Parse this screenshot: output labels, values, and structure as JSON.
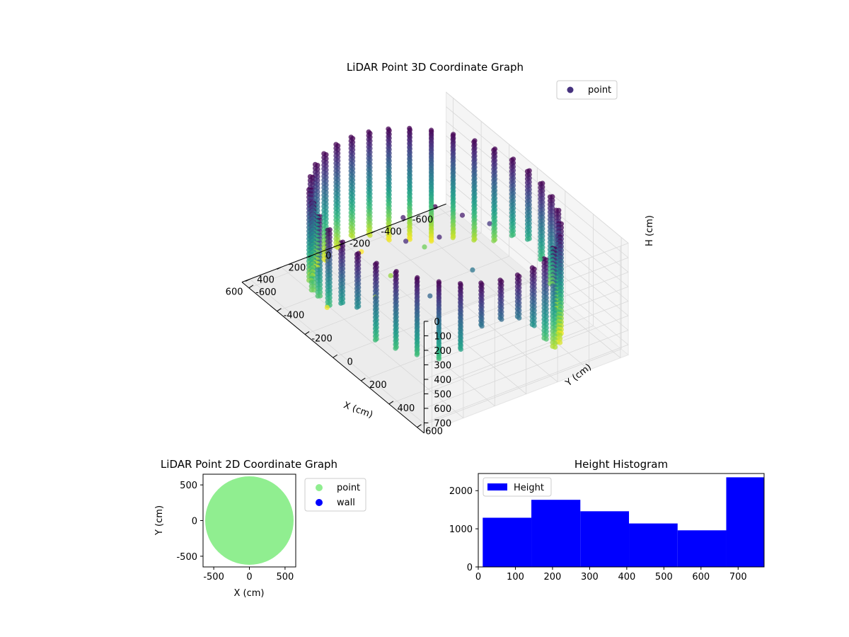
{
  "chart_data": [
    {
      "type": "scatter",
      "projection": "3d",
      "title": "LiDAR Point 3D Coordinate Graph",
      "xlabel": "X (cm)",
      "ylabel": "Y (cm)",
      "zlabel": "H (cm)",
      "xticks": [
        -600,
        -400,
        -200,
        0,
        200,
        400,
        600
      ],
      "yticks": [
        -600,
        -400,
        -200,
        0,
        200,
        400,
        600
      ],
      "zticks": [
        0,
        100,
        200,
        300,
        400,
        500,
        600,
        700
      ],
      "xlim": [
        -650,
        650
      ],
      "ylim": [
        -650,
        650
      ],
      "zlim": [
        770,
        0
      ],
      "z_axis_inverted": true,
      "colormap": "viridis",
      "legend": {
        "position": "upper-right",
        "entries": [
          {
            "label": "point",
            "color": "#46327e"
          }
        ]
      },
      "series": [
        {
          "name": "point",
          "shape": "cylindrical wall of scan columns, radius ≈ 600 cm, heights 0–770 cm",
          "color_by": "height",
          "column_angles_deg": [
            0,
            10,
            20,
            30,
            40,
            50,
            60,
            70,
            80,
            90,
            100,
            110,
            120,
            130,
            140,
            150,
            160,
            170,
            180,
            190,
            200,
            210,
            220,
            230,
            240,
            250,
            260,
            270,
            280,
            290,
            300,
            310,
            320,
            330,
            340,
            350
          ],
          "column_heights_cm": [
            430,
            380,
            520,
            540,
            520,
            520,
            460,
            300,
            280,
            300,
            400,
            560,
            700,
            740,
            760,
            700,
            620,
            520,
            480,
            520,
            640,
            700,
            720,
            760,
            770,
            760,
            720,
            700,
            720,
            740,
            720,
            680,
            640,
            600,
            560,
            520
          ],
          "column_radius_cm": 600,
          "extra_points": [
            {
              "x": -30,
              "y": -560,
              "h": 770
            },
            {
              "x": 420,
              "y": -300,
              "h": 760
            },
            {
              "x": 0,
              "y": 0,
              "h": 0
            },
            {
              "x": 150,
              "y": -60,
              "h": 60
            },
            {
              "x": -120,
              "y": 60,
              "h": 60
            },
            {
              "x": -240,
              "y": 120,
              "h": 120
            },
            {
              "x": 80,
              "y": 120,
              "h": 80
            },
            {
              "x": 240,
              "y": 60,
              "h": 90
            },
            {
              "x": -200,
              "y": -300,
              "h": 600
            },
            {
              "x": 60,
              "y": -250,
              "h": 650
            },
            {
              "x": 200,
              "y": -200,
              "h": 700
            },
            {
              "x": -60,
              "y": 200,
              "h": 300
            },
            {
              "x": 300,
              "y": 300,
              "h": 250
            }
          ]
        }
      ]
    },
    {
      "type": "scatter",
      "title": "LiDAR Point 2D Coordinate Graph",
      "xlabel": "X (cm)",
      "ylabel": "Y (cm)",
      "xticks": [
        -500,
        0,
        500
      ],
      "yticks": [
        -500,
        0,
        500
      ],
      "xlim": [
        -650,
        650
      ],
      "ylim": [
        -650,
        650
      ],
      "legend": {
        "position": "outside-right",
        "entries": [
          {
            "label": "point",
            "color": "#90ee90"
          },
          {
            "label": "wall",
            "color": "#0000ff"
          }
        ]
      },
      "series": [
        {
          "name": "point",
          "color": "#90ee90",
          "shape": "filled disc",
          "radius_cm": 620
        },
        {
          "name": "wall",
          "color": "#0000ff",
          "values": []
        }
      ]
    },
    {
      "type": "bar",
      "subtype": "histogram",
      "title": "Height Histogram",
      "xticks": [
        0,
        100,
        200,
        300,
        400,
        500,
        600,
        700
      ],
      "yticks": [
        0,
        1000,
        2000
      ],
      "xlim": [
        0,
        770
      ],
      "ylim": [
        0,
        2450
      ],
      "legend": {
        "position": "upper-left",
        "entries": [
          {
            "label": "Height",
            "color": "#0000ff"
          }
        ]
      },
      "series": [
        {
          "name": "Height",
          "color": "#0000ff",
          "bins": [
            {
              "x0": 12,
              "x1": 143,
              "count": 1290
            },
            {
              "x0": 143,
              "x1": 275,
              "count": 1760
            },
            {
              "x0": 275,
              "x1": 406,
              "count": 1460
            },
            {
              "x0": 406,
              "x1": 537,
              "count": 1140
            },
            {
              "x0": 537,
              "x1": 668,
              "count": 960
            },
            {
              "x0": 668,
              "x1": 770,
              "count": 2350
            }
          ]
        }
      ]
    }
  ]
}
